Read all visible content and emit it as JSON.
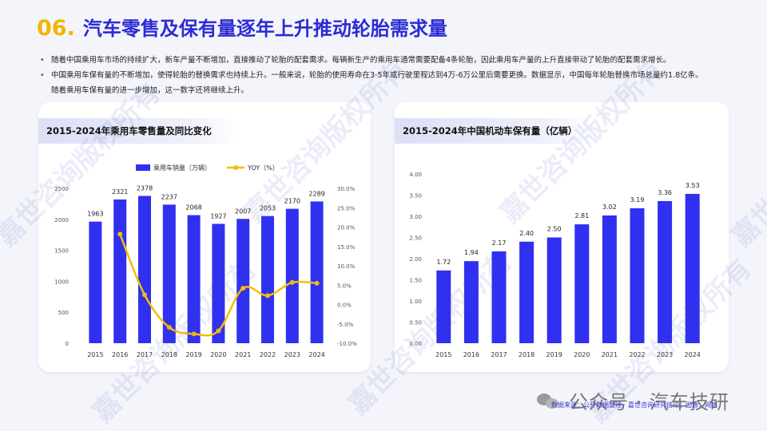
{
  "page": {
    "title_number": "06.",
    "title_text": "汽车零售及保有量逐年上升推动轮胎需求量"
  },
  "bullets": [
    "随着中国乘用车市场的持续扩大，新车产量不断增加，直接推动了轮胎的配套需求。每辆新生产的乘用车通常需要配备4条轮胎，因此乘用车产量的上升直接带动了轮胎的配套需求增长。",
    "中国乘用车保有量的不断增加，使得轮胎的替换需求也持续上升。一般来说，轮胎的使用寿命在3-5年或行驶里程达到4万-6万公里后需要更换。数据显示，中国每年轮胎替换市场总量约1.8亿条。",
    "随着乘用车保有量的进一步增加，这一数字还将继续上升。"
  ],
  "footer": {
    "brand": "公众号 · 汽车技研",
    "source": "数据来源：公开数据整理，嘉世咨询研究结论；图源：网络"
  },
  "watermark_text": "嘉世咨询版权所有",
  "chart_data": [
    {
      "type": "bar",
      "title": "2015-2024年乘用车零售量及同比变化",
      "categories": [
        "2015",
        "2016",
        "2017",
        "2018",
        "2019",
        "2020",
        "2021",
        "2022",
        "2023",
        "2024"
      ],
      "series": [
        {
          "name": "乘用车销量（万辆）",
          "type": "bar",
          "axis": "left",
          "values": [
            1963,
            2321,
            2378,
            2237,
            2068,
            1927,
            2007,
            2053,
            2170,
            2289
          ]
        },
        {
          "name": "YOY（%）",
          "type": "line",
          "axis": "right",
          "values": [
            null,
            18.2,
            2.5,
            -5.9,
            -7.6,
            -6.8,
            4.2,
            2.3,
            5.7,
            5.5
          ]
        }
      ],
      "y_left": {
        "ticks": [
          0,
          500,
          1000,
          1500,
          2000,
          2500
        ],
        "range": [
          0,
          2500
        ]
      },
      "y_right": {
        "ticks": [
          "-10.0%",
          "-5.0%",
          "0.0%",
          "5.0%",
          "10.0%",
          "15.0%",
          "20.0%",
          "25.0%",
          "30.0%"
        ],
        "range": [
          -10,
          30
        ]
      },
      "legend_position": "top",
      "colors": {
        "bar": "#3030f0",
        "line": "#f5bd00"
      }
    },
    {
      "type": "bar",
      "title": "2015-2024年中国机动车保有量（亿辆）",
      "categories": [
        "2015",
        "2016",
        "2017",
        "2018",
        "2019",
        "2020",
        "2021",
        "2022",
        "2023",
        "2024"
      ],
      "values": [
        1.72,
        1.94,
        2.17,
        2.4,
        2.5,
        2.81,
        3.02,
        3.19,
        3.36,
        3.53
      ],
      "value_labels": [
        "1.72",
        "1.94",
        "2.17",
        "2.40",
        "2.50",
        "2.81",
        "3.02",
        "3.19",
        "3.36",
        "3.53"
      ],
      "y_axis": {
        "ticks": [
          "0.00",
          "0.50",
          "1.00",
          "1.50",
          "2.00",
          "2.50",
          "3.00",
          "3.50",
          "4.00"
        ],
        "range": [
          0,
          4
        ]
      },
      "colors": {
        "bar": "#3030f0"
      }
    }
  ]
}
